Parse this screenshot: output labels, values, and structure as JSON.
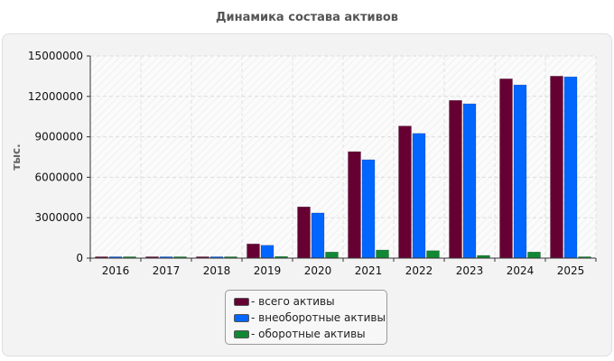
{
  "chart_data": {
    "type": "bar",
    "title": "Динамика состава активов",
    "ylabel": "тыс.",
    "xlabel": "",
    "categories": [
      "2016",
      "2017",
      "2018",
      "2019",
      "2020",
      "2021",
      "2022",
      "2023",
      "2024",
      "2025"
    ],
    "ylim": [
      0,
      15000000
    ],
    "yticks": [
      "0",
      "3000000",
      "6000000",
      "9000000",
      "12000000",
      "15000000"
    ],
    "grid": true,
    "legend_position": "bottom",
    "series": [
      {
        "name": "- всего активы",
        "color": "#660033",
        "values": [
          60000,
          60000,
          60000,
          1050000,
          3800000,
          7900000,
          9800000,
          11700000,
          13300000,
          13500000
        ]
      },
      {
        "name": "- внеоборотные активы",
        "color": "#0066ff",
        "values": [
          50000,
          50000,
          50000,
          950000,
          3350000,
          7300000,
          9250000,
          11450000,
          12850000,
          13450000
        ]
      },
      {
        "name": "- оборотные активы",
        "color": "#118833",
        "values": [
          30000,
          30000,
          30000,
          120000,
          450000,
          600000,
          550000,
          200000,
          450000,
          60000
        ]
      }
    ]
  }
}
